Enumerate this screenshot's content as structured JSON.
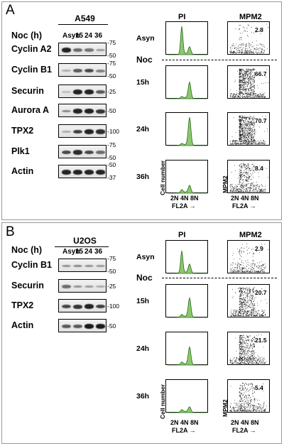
{
  "panel_a": {
    "letter": "A",
    "cell_line": "A549",
    "noc_label": "Noc (h)",
    "lanes": [
      "Asyn",
      "15",
      "24",
      "36"
    ],
    "blots": [
      {
        "label": "Cyclin A2",
        "ticks": [
          "-75",
          "-50"
        ],
        "levels": [
          0.9,
          0.5,
          0.45,
          0.25
        ]
      },
      {
        "label": "Cyclin B1",
        "ticks": [
          "-75",
          "-50"
        ],
        "levels": [
          0.15,
          0.6,
          0.7,
          0.4
        ]
      },
      {
        "label": "Securin",
        "ticks": [
          "-25"
        ],
        "levels": [
          0.05,
          0.9,
          0.9,
          0.6
        ]
      },
      {
        "label": "Aurora A",
        "ticks": [
          "-50"
        ],
        "levels": [
          0.35,
          0.9,
          0.9,
          0.8
        ]
      },
      {
        "label": "TPX2",
        "ticks": [
          "-100"
        ],
        "levels": [
          0.15,
          0.75,
          0.9,
          0.85
        ]
      },
      {
        "label": "Plk1",
        "ticks": [
          "-75",
          "-50"
        ],
        "levels": [
          0.7,
          0.85,
          0.7,
          0.5
        ]
      },
      {
        "label": "Actin",
        "ticks": [
          "-50",
          "-37"
        ],
        "levels": [
          0.9,
          0.9,
          0.9,
          0.9
        ]
      }
    ],
    "pi_header": "PI",
    "mpm2_header": "MPM2",
    "noc_row": "Noc",
    "rows": [
      {
        "time": "Asyn",
        "mpm2": "2.8"
      },
      {
        "time": "15h",
        "mpm2": "66.7"
      },
      {
        "time": "24h",
        "mpm2": "70.7"
      },
      {
        "time": "36h",
        "mpm2": "8.4"
      }
    ],
    "cell_number": "Cell number",
    "mpm2_axis": "MPM2",
    "pi_ticks": "2N 4N 8N",
    "fl2a": "FL2A →"
  },
  "panel_b": {
    "letter": "B",
    "cell_line": "U2OS",
    "noc_label": "Noc (h)",
    "lanes": [
      "Asyn",
      "15",
      "24",
      "36"
    ],
    "blots": [
      {
        "label": "Cyclin B1",
        "ticks": [
          "-75",
          "-50"
        ],
        "levels": [
          0.3,
          0.35,
          0.3,
          0.25
        ]
      },
      {
        "label": "Securin",
        "ticks": [
          "-25"
        ],
        "levels": [
          0.5,
          0.3,
          0.25,
          0.15
        ]
      },
      {
        "label": "TPX2",
        "ticks": [
          "-100"
        ],
        "levels": [
          0.7,
          0.8,
          0.9,
          0.75
        ]
      },
      {
        "label": "Actin",
        "ticks": [
          "-50"
        ],
        "levels": [
          0.6,
          0.6,
          0.95,
          0.95
        ]
      }
    ],
    "pi_header": "PI",
    "mpm2_header": "MPM2",
    "noc_row": "Noc",
    "rows": [
      {
        "time": "Asyn",
        "mpm2": "2.9"
      },
      {
        "time": "15h",
        "mpm2": "20.7"
      },
      {
        "time": "24h",
        "mpm2": "21.5"
      },
      {
        "time": "36h",
        "mpm2": "5.4"
      }
    ],
    "cell_number": "Cell number",
    "mpm2_axis": "MPM2",
    "pi_ticks": "2N 4N 8N",
    "fl2a": "FL2A →"
  },
  "colors": {
    "histogram_fill": "#8cc86e",
    "histogram_stroke": "#2a6a1a"
  }
}
